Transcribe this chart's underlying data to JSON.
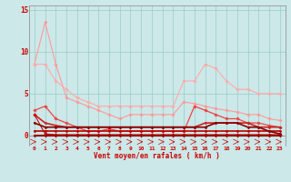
{
  "background_color": "#cce8e8",
  "grid_color": "#99cccc",
  "xlabel": "Vent moyen/en rafales ( km/h )",
  "ylim": [
    -1.2,
    15.5
  ],
  "xlim": [
    -0.5,
    23.5
  ],
  "yticks": [
    0,
    5,
    10,
    15
  ],
  "x_values": [
    0,
    1,
    2,
    3,
    4,
    5,
    6,
    7,
    8,
    9,
    10,
    11,
    12,
    13,
    14,
    15,
    16,
    17,
    18,
    19,
    20,
    21,
    22,
    23
  ],
  "series": [
    {
      "values": [
        8.5,
        13.5,
        8.5,
        4.5,
        4.0,
        3.5,
        3.0,
        2.5,
        2.0,
        2.5,
        2.5,
        2.5,
        2.5,
        2.5,
        4.0,
        3.8,
        3.5,
        3.2,
        3.0,
        2.8,
        2.5,
        2.5,
        2.0,
        1.8
      ],
      "color": "#ff9999",
      "linewidth": 0.8,
      "marker": "D",
      "markersize": 1.8
    },
    {
      "values": [
        8.5,
        8.5,
        6.5,
        5.5,
        4.5,
        4.0,
        3.5,
        3.5,
        3.5,
        3.5,
        3.5,
        3.5,
        3.5,
        3.5,
        6.5,
        6.5,
        8.5,
        8.0,
        6.5,
        5.5,
        5.5,
        5.0,
        5.0,
        5.0
      ],
      "color": "#ffaaaa",
      "linewidth": 0.8,
      "marker": "D",
      "markersize": 1.8
    },
    {
      "values": [
        3.0,
        3.5,
        2.0,
        1.5,
        1.0,
        0.5,
        0.5,
        0.8,
        0.5,
        0.5,
        0.5,
        0.5,
        0.5,
        0.5,
        0.5,
        3.5,
        3.0,
        2.5,
        2.0,
        2.0,
        1.5,
        1.5,
        1.2,
        1.0
      ],
      "color": "#ee4444",
      "linewidth": 0.9,
      "marker": "D",
      "markersize": 1.8
    },
    {
      "values": [
        2.5,
        1.5,
        1.2,
        1.0,
        1.0,
        1.0,
        1.0,
        1.0,
        1.0,
        1.0,
        1.0,
        1.0,
        1.0,
        1.0,
        1.0,
        1.0,
        1.5,
        1.5,
        1.5,
        1.5,
        1.5,
        1.0,
        1.0,
        1.0
      ],
      "color": "#cc2222",
      "linewidth": 1.2,
      "marker": "D",
      "markersize": 1.5
    },
    {
      "values": [
        2.5,
        0.2,
        0.1,
        0.1,
        0.1,
        0.1,
        0.1,
        0.1,
        0.1,
        0.1,
        0.1,
        0.1,
        0.1,
        0.1,
        0.1,
        0.1,
        0.1,
        0.1,
        0.1,
        0.1,
        0.1,
        0.1,
        0.1,
        0.1
      ],
      "color": "#cc0000",
      "linewidth": 0.8,
      "marker": "D",
      "markersize": 1.8
    },
    {
      "values": [
        0.0,
        0.0,
        0.0,
        0.0,
        0.0,
        0.0,
        0.0,
        0.0,
        0.0,
        0.0,
        0.0,
        0.0,
        0.0,
        0.0,
        0.0,
        0.0,
        0.0,
        0.0,
        0.0,
        0.0,
        0.0,
        0.0,
        0.0,
        0.0
      ],
      "color": "#990000",
      "linewidth": 1.5,
      "marker": "D",
      "markersize": 1.5
    },
    {
      "values": [
        0.5,
        0.5,
        0.5,
        0.5,
        0.5,
        0.5,
        0.5,
        0.5,
        0.5,
        0.5,
        0.5,
        0.5,
        0.5,
        0.5,
        0.5,
        0.5,
        0.5,
        0.5,
        0.5,
        0.5,
        0.5,
        0.5,
        0.5,
        0.5
      ],
      "color": "#bb0000",
      "linewidth": 1.2,
      "marker": "D",
      "markersize": 1.5
    },
    {
      "values": [
        1.5,
        1.0,
        1.0,
        1.0,
        1.0,
        1.0,
        1.0,
        1.0,
        1.0,
        1.0,
        1.0,
        1.0,
        1.0,
        1.0,
        1.0,
        1.0,
        1.0,
        1.5,
        1.5,
        1.5,
        1.0,
        1.0,
        0.5,
        0.2
      ],
      "color": "#880000",
      "linewidth": 1.2,
      "marker": "D",
      "markersize": 1.5
    }
  ]
}
